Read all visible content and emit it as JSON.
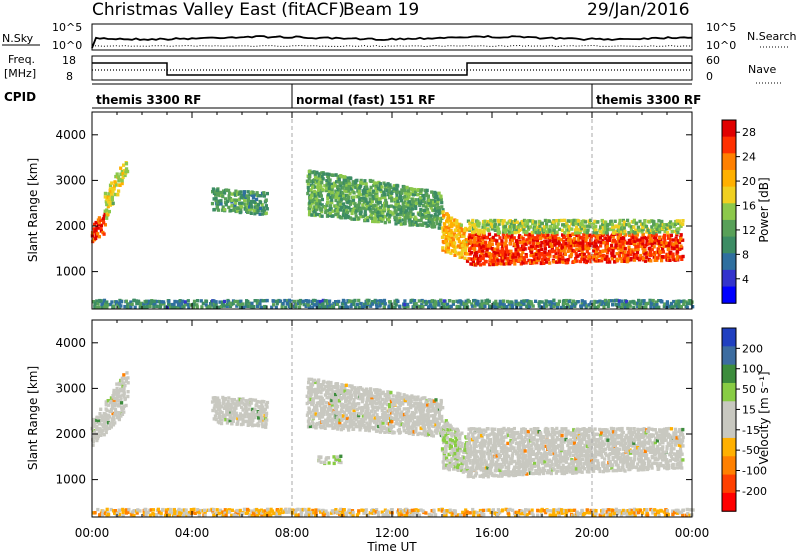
{
  "header": {
    "title": "Christmas Valley East (fitACF)",
    "beam": "Beam 19",
    "date": "29/Jan/2016"
  },
  "panels": {
    "nsky_label": "N.Sky",
    "nsky_ticks": [
      "10^5",
      "10^0"
    ],
    "nsearch_label": "N.Search",
    "freq_label_1": "Freq.",
    "freq_label_2": "[MHz]",
    "freq_ticks": [
      "18",
      "8"
    ],
    "nave_label": "Nave",
    "nave_ticks": [
      "60",
      "0"
    ],
    "cpid_label": "CPID"
  },
  "modes": [
    {
      "label": "themis 3300 RF",
      "start_h": 0,
      "end_h": 8
    },
    {
      "label": "normal (fast) 151 RF",
      "start_h": 8,
      "end_h": 20
    },
    {
      "label": "themis 3300 RF",
      "start_h": 20,
      "end_h": 24
    }
  ],
  "colors": {
    "power": [
      "#0000ff",
      "#3333cc",
      "#2f6f9f",
      "#3c8c64",
      "#58a058",
      "#8cc84b",
      "#f0d020",
      "#ffb000",
      "#ff8000",
      "#ff3000",
      "#e00000"
    ],
    "velocity": [
      "#ff0000",
      "#ff4000",
      "#ff8000",
      "#ffb000",
      "#c8c8c0",
      "#c8c8c0",
      "#88cc44",
      "#3c8c3c",
      "#3c6ca0",
      "#2040c0"
    ],
    "ground_scatter": "#c8c8c0"
  },
  "chart_data": [
    {
      "type": "heatmap",
      "name": "power",
      "xlabel": "",
      "ylabel": "Slant Range [km]",
      "xlim": [
        0,
        24
      ],
      "ylim": [
        180,
        4500
      ],
      "yticks": [
        "1000",
        "2000",
        "3000",
        "4000"
      ],
      "colorbar": {
        "label": "Power [dB]",
        "ticks": [
          "4",
          "8",
          "12",
          "16",
          "20",
          "24",
          "28"
        ],
        "range": [
          0,
          30
        ]
      },
      "regions": [
        {
          "t": [
            0.0,
            0.5
          ],
          "r_low": [
            1700,
            1900
          ],
          "r_high": [
            2100,
            2400
          ],
          "level": 26
        },
        {
          "t": [
            0.5,
            1.4
          ],
          "r_low": [
            2200,
            3300
          ],
          "r_high": [
            2800,
            3600
          ],
          "level": 17
        },
        {
          "t": [
            4.8,
            7.0
          ],
          "r_low": [
            2400,
            2300
          ],
          "r_high": [
            2900,
            2800
          ],
          "level": 11
        },
        {
          "t": [
            8.6,
            14.0
          ],
          "r_low": [
            2300,
            2000
          ],
          "r_high": [
            3300,
            2800
          ],
          "level": 12
        },
        {
          "t": [
            14.0,
            15.0
          ],
          "r_low": [
            1500,
            1300
          ],
          "r_high": [
            2400,
            2000
          ],
          "level": 20
        },
        {
          "t": [
            15.0,
            23.6
          ],
          "r_low": [
            1200,
            1300
          ],
          "r_high": [
            1900,
            1900
          ],
          "level": 26
        },
        {
          "t": [
            15.0,
            23.6
          ],
          "r_low": [
            1900,
            1900
          ],
          "r_high": [
            2200,
            2200
          ],
          "level": 15
        },
        {
          "t": [
            0.0,
            24.0
          ],
          "r_low": [
            200,
            200
          ],
          "r_high": [
            450,
            450
          ],
          "level": 9
        }
      ]
    },
    {
      "type": "heatmap",
      "name": "velocity",
      "xlabel": "Time UT",
      "ylabel": "Slant Range [km]",
      "xlim": [
        0,
        24
      ],
      "ylim": [
        180,
        4500
      ],
      "xticks": [
        "00:00",
        "04:00",
        "08:00",
        "12:00",
        "16:00",
        "20:00",
        "00:00"
      ],
      "yticks": [
        "1000",
        "2000",
        "3000",
        "4000"
      ],
      "colorbar": {
        "label": "Velocity [m s⁻¹]",
        "ticks": [
          "200",
          "100",
          "50",
          "15",
          "-15",
          "-50",
          "-100",
          "-200"
        ],
        "range": [
          -250,
          250
        ]
      },
      "regions": [
        {
          "t": [
            0.0,
            1.4
          ],
          "r_low": [
            1800,
            2600
          ],
          "r_high": [
            2400,
            3500
          ],
          "level": "gs"
        },
        {
          "t": [
            4.8,
            7.0
          ],
          "r_low": [
            2300,
            2200
          ],
          "r_high": [
            2900,
            2800
          ],
          "level": "gs"
        },
        {
          "t": [
            8.6,
            14.0
          ],
          "r_low": [
            2200,
            2000
          ],
          "r_high": [
            3300,
            2800
          ],
          "level": "gs"
        },
        {
          "t": [
            9.0,
            10.0
          ],
          "r_low": [
            1400,
            1400
          ],
          "r_high": [
            1600,
            1600
          ],
          "level": 40
        },
        {
          "t": [
            14.0,
            15.0
          ],
          "r_low": [
            1300,
            1200
          ],
          "r_high": [
            2400,
            2000
          ],
          "level": 30
        },
        {
          "t": [
            15.0,
            23.6
          ],
          "r_low": [
            1100,
            1300
          ],
          "r_high": [
            2200,
            2200
          ],
          "level": "gs"
        },
        {
          "t": [
            0.0,
            24.0
          ],
          "r_low": [
            200,
            200
          ],
          "r_high": [
            420,
            420
          ],
          "level": -60
        }
      ]
    }
  ],
  "axes_labels": {
    "power_ylabel": "Slant Range [km]",
    "power_cb": "Power [dB]",
    "velocity_ylabel": "Slant Range [km]",
    "velocity_cb": "Velocity [m s⁻¹]",
    "xlabel": "Time UT"
  }
}
